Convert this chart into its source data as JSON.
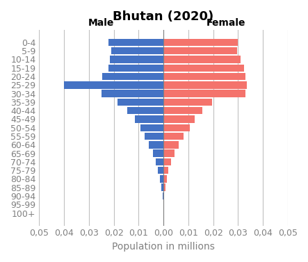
{
  "title": "Bhutan (2020)",
  "xlabel": "Population in millions",
  "male_label": "Male",
  "female_label": "Female",
  "age_groups": [
    "100+",
    "95-99",
    "90-94",
    "85-89",
    "80-84",
    "75-79",
    "70-74",
    "65-69",
    "60-64",
    "55-59",
    "50-54",
    "45-49",
    "40-44",
    "35-39",
    "30-34",
    "25-29",
    "20-24",
    "15-19",
    "10-14",
    "5-9",
    "0-4"
  ],
  "male_values": [
    0.0,
    0.0,
    0.0002,
    0.0008,
    0.0014,
    0.0022,
    0.003,
    0.0043,
    0.006,
    0.0075,
    0.0092,
    0.0115,
    0.0145,
    0.0185,
    0.025,
    0.04,
    0.0245,
    0.022,
    0.0215,
    0.021,
    0.022
  ],
  "female_values": [
    0.0,
    0.0,
    0.0003,
    0.0007,
    0.0013,
    0.002,
    0.003,
    0.0043,
    0.0062,
    0.008,
    0.0105,
    0.0125,
    0.0155,
    0.0195,
    0.033,
    0.0335,
    0.033,
    0.0325,
    0.031,
    0.0295,
    0.03
  ],
  "male_color": "#4472C4",
  "female_color": "#F4736C",
  "background_color": "#FFFFFF",
  "xlim": 0.05,
  "title_fontsize": 13,
  "label_fontsize": 10,
  "tick_fontsize": 9,
  "grid_color": "#C0C0C0"
}
